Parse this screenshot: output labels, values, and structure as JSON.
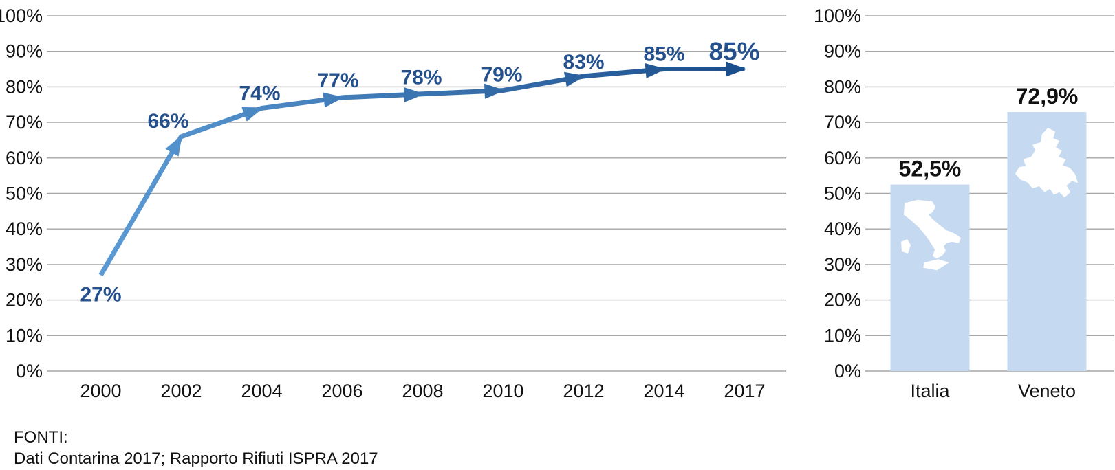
{
  "page": {
    "background": "#FFFFFF"
  },
  "source_note": {
    "label": "FONTI:",
    "text": "Dati Contarina 2017; Rapporto Rifiuti ISPRA 2017"
  },
  "chart_data": [
    {
      "type": "line",
      "name": "raccolta-differenziata-trend",
      "title": "",
      "xlabel": "",
      "ylabel": "",
      "x": [
        "2000",
        "2002",
        "2004",
        "2006",
        "2008",
        "2010",
        "2012",
        "2014",
        "2017"
      ],
      "values": [
        27,
        66,
        74,
        77,
        78,
        79,
        83,
        85,
        85
      ],
      "point_labels": [
        "27%",
        "66%",
        "74%",
        "77%",
        "78%",
        "79%",
        "83%",
        "85%",
        "85%"
      ],
      "emphasize_last_label": true,
      "ylim": [
        0,
        100
      ],
      "yticks": [
        "0%",
        "10%",
        "20%",
        "30%",
        "40%",
        "50%",
        "60%",
        "70%",
        "80%",
        "90%",
        "100%"
      ],
      "grid": true,
      "legend": "none",
      "style": {
        "line_gradient_start": "#5B9BD5",
        "line_gradient_end": "#1B4E8C",
        "marker": "arrow",
        "label_color": "#24518E",
        "grid_color": "#A6A6A6",
        "axis_text_color": "#111111"
      }
    },
    {
      "type": "bar",
      "name": "raccolta-differenziata-confronto",
      "title": "",
      "xlabel": "",
      "ylabel": "",
      "categories": [
        "Italia",
        "Veneto"
      ],
      "values": [
        52.5,
        72.9
      ],
      "value_labels": [
        "52,5%",
        "72,9%"
      ],
      "bar_icons": [
        "italy-map-silhouette",
        "veneto-map-silhouette"
      ],
      "ylim": [
        0,
        100
      ],
      "yticks": [
        "0%",
        "10%",
        "20%",
        "30%",
        "40%",
        "50%",
        "60%",
        "70%",
        "80%",
        "90%",
        "100%"
      ],
      "grid": true,
      "legend": "none",
      "style": {
        "bar_color": "#C5D9F0",
        "icon_color": "#FFFFFF",
        "value_label_color": "#111111",
        "grid_color": "#A6A6A6",
        "axis_text_color": "#111111"
      }
    }
  ]
}
